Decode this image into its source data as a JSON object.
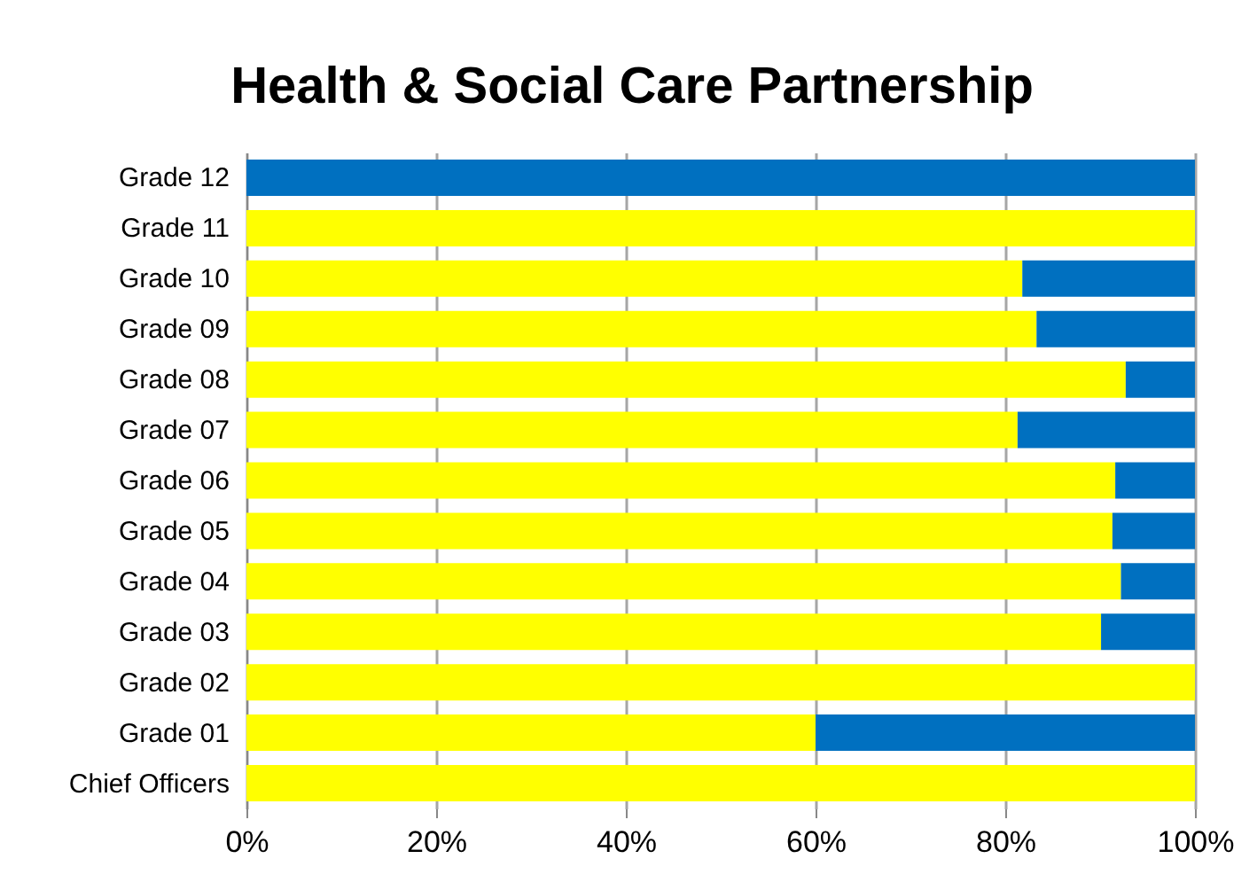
{
  "chart_data": {
    "type": "bar",
    "title": "Health & Social Care Partnership",
    "orientation": "horizontal",
    "stacked": true,
    "categories": [
      "Grade 12",
      "Grade 11",
      "Grade 10",
      "Grade 09",
      "Grade 08",
      "Grade 07",
      "Grade 06",
      "Grade 05",
      "Grade 04",
      "Grade 03",
      "Grade 02",
      "Grade 01",
      "Chief Officers"
    ],
    "series": [
      {
        "color": "#ffff00",
        "values": [
          0,
          100,
          81.8,
          83.3,
          92.7,
          81.3,
          91.6,
          91.3,
          92.2,
          90.1,
          100,
          60,
          100
        ]
      },
      {
        "color": "#0070c0",
        "values": [
          100,
          0,
          18.2,
          16.7,
          7.3,
          18.7,
          8.4,
          8.7,
          7.8,
          9.9,
          0,
          40,
          0
        ]
      }
    ],
    "xlim": [
      0,
      100
    ],
    "xticks": [
      {
        "value": 0,
        "label": "0%"
      },
      {
        "value": 20,
        "label": "20%"
      },
      {
        "value": 40,
        "label": "40%"
      },
      {
        "value": 60,
        "label": "60%"
      },
      {
        "value": 80,
        "label": "80%"
      },
      {
        "value": 100,
        "label": "100%"
      }
    ],
    "grid": "x"
  }
}
